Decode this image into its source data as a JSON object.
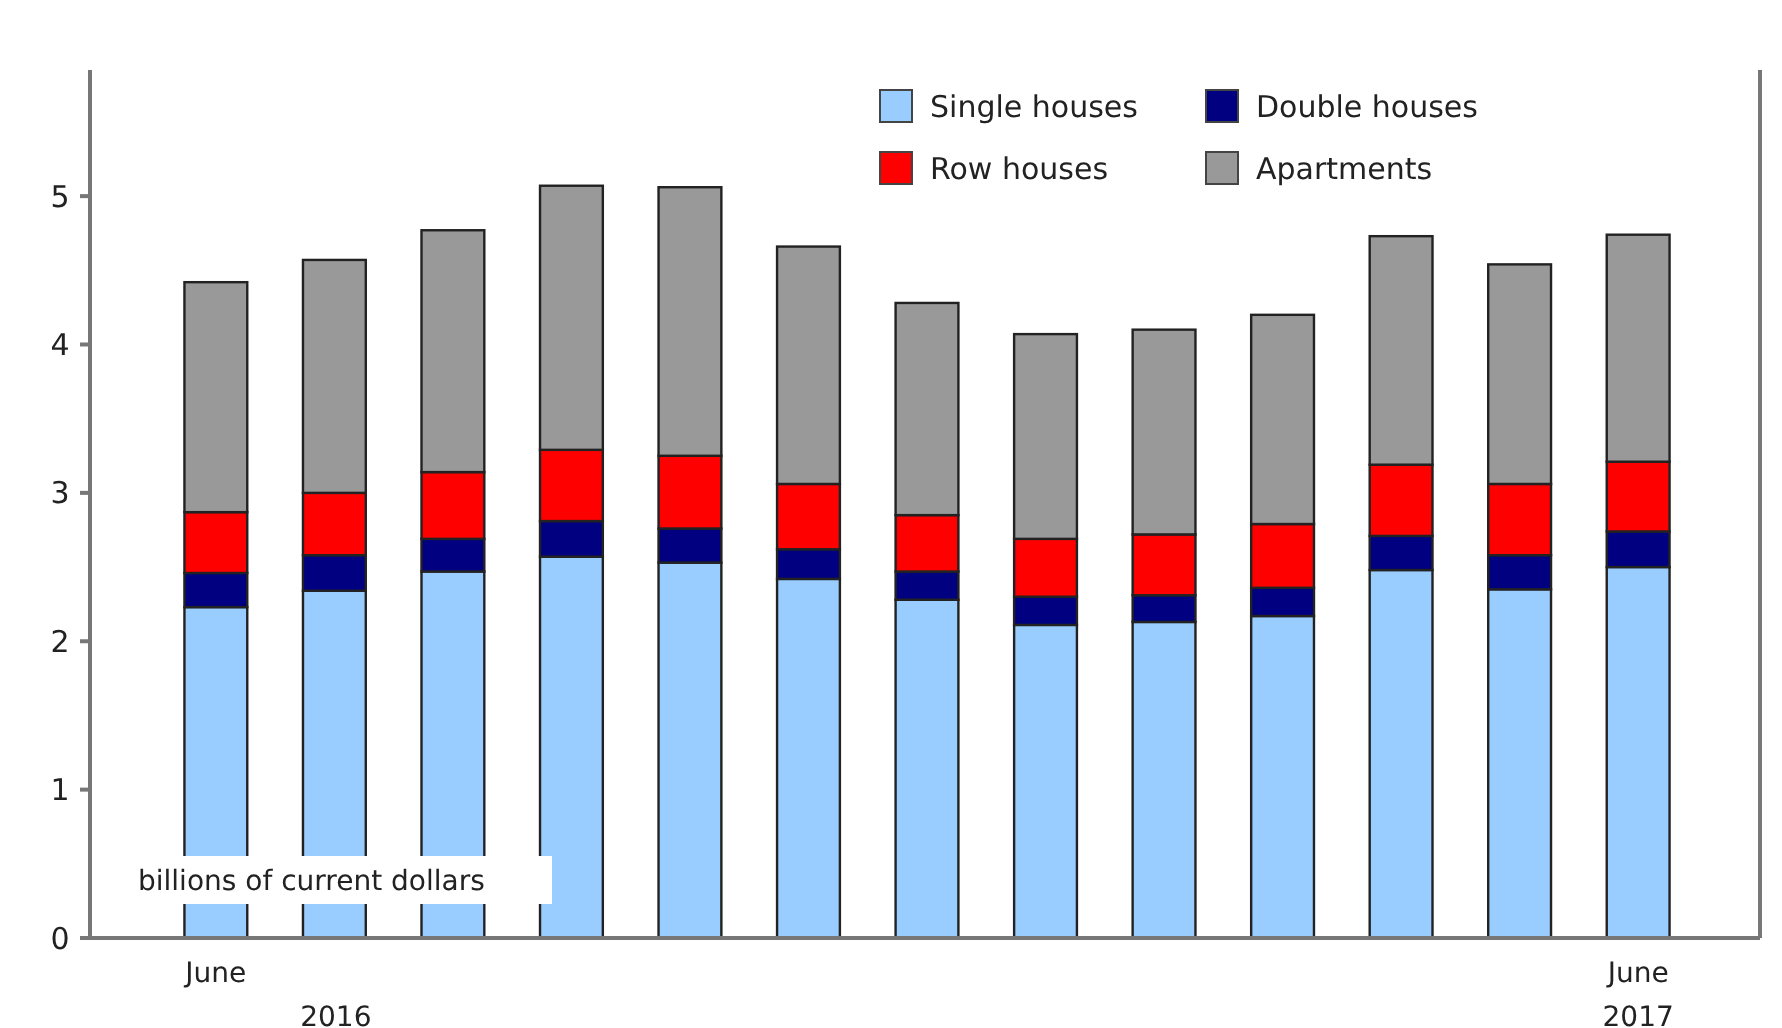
{
  "chart_data": {
    "type": "bar",
    "stacked": true,
    "ylabel": "billions of current dollars",
    "categories": [
      "June",
      null,
      null,
      null,
      null,
      null,
      null,
      null,
      null,
      null,
      null,
      null,
      "June"
    ],
    "series": [
      {
        "name": "Single houses",
        "color": "#99ccff",
        "values": [
          2.23,
          2.34,
          2.47,
          2.57,
          2.53,
          2.42,
          2.28,
          2.11,
          2.13,
          2.17,
          2.48,
          2.35,
          2.5
        ]
      },
      {
        "name": "Double houses",
        "color": "#000080",
        "values": [
          0.23,
          0.24,
          0.22,
          0.24,
          0.23,
          0.2,
          0.19,
          0.19,
          0.18,
          0.19,
          0.23,
          0.23,
          0.24
        ]
      },
      {
        "name": "Row houses",
        "color": "#ff0000",
        "values": [
          0.41,
          0.42,
          0.45,
          0.48,
          0.49,
          0.44,
          0.38,
          0.39,
          0.41,
          0.43,
          0.48,
          0.48,
          0.47
        ]
      },
      {
        "name": "Apartments",
        "color": "#999999",
        "values": [
          1.55,
          1.57,
          1.63,
          1.78,
          1.81,
          1.6,
          1.43,
          1.38,
          1.38,
          1.41,
          1.54,
          1.48,
          1.53
        ]
      }
    ],
    "ylim": [
      0,
      5.85
    ],
    "yticks": [
      0,
      1,
      2,
      3,
      4,
      5
    ],
    "grid": false,
    "legend": "top right",
    "annotations": [
      "2016",
      "2017"
    ]
  }
}
